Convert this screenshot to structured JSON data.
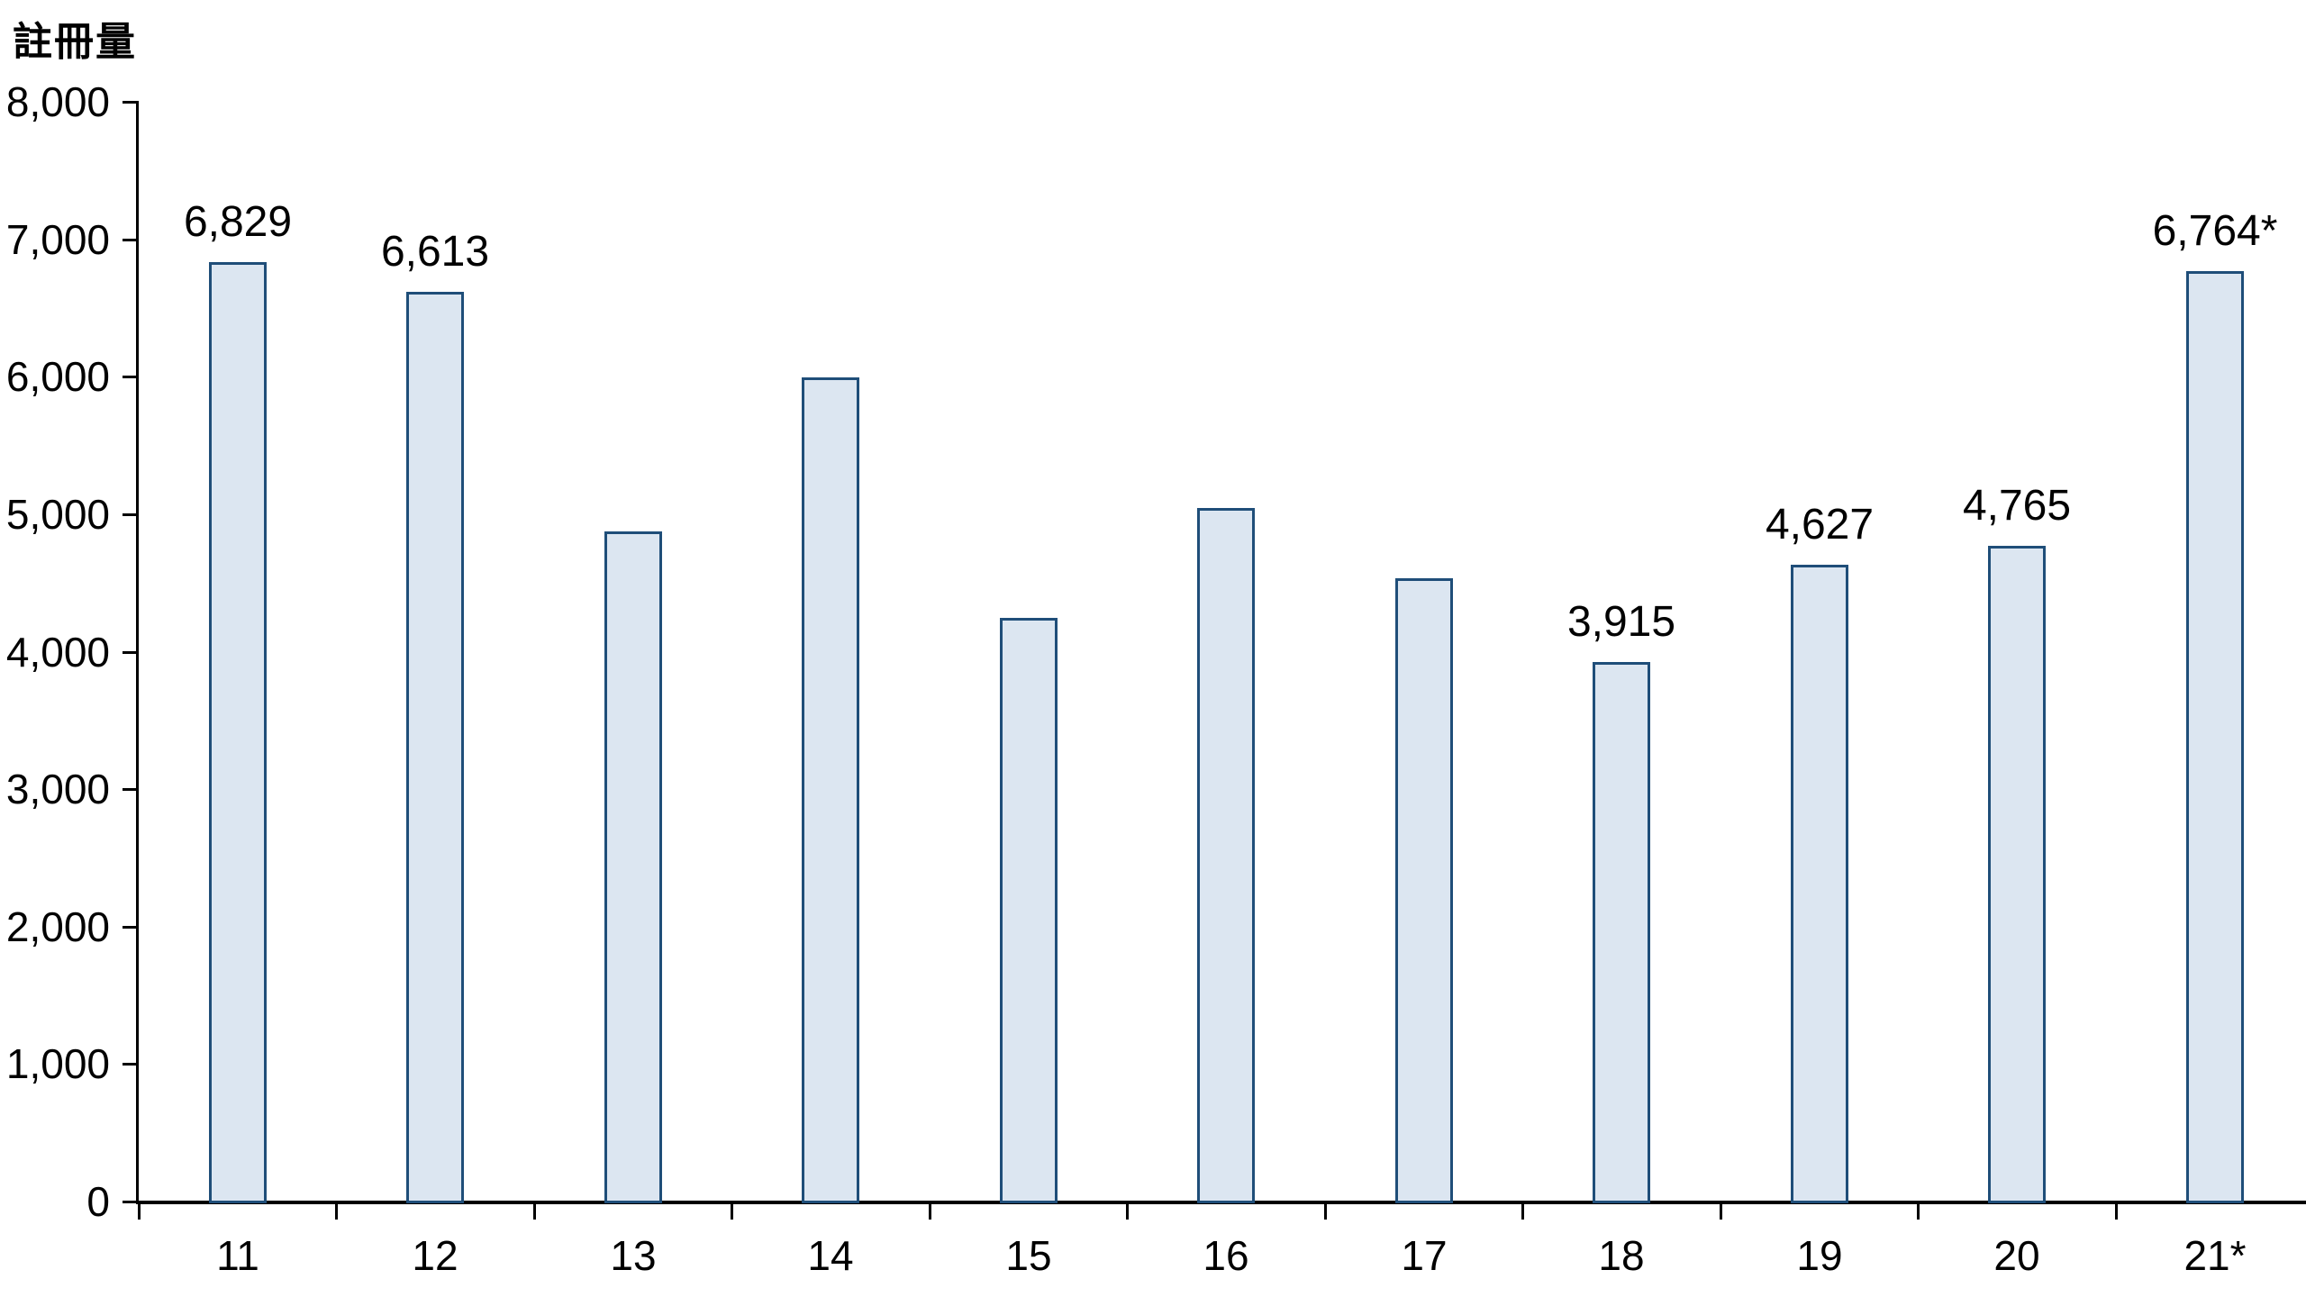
{
  "chart_data": {
    "type": "bar",
    "title": "註冊量",
    "ylabel": "註冊量",
    "xlabel": "",
    "categories": [
      "11",
      "12",
      "13",
      "14",
      "15",
      "16",
      "17",
      "18",
      "19",
      "20",
      "21*"
    ],
    "values": [
      6829,
      6613,
      4870,
      5990,
      4240,
      5040,
      4530,
      3915,
      4627,
      4765,
      6764
    ],
    "data_labels": [
      "6,829",
      "6,613",
      "",
      "",
      "",
      "",
      "",
      "3,915",
      "4,627",
      "4,765",
      "6,764*"
    ],
    "ylim": [
      0,
      8000
    ],
    "y_tick_step": 1000,
    "y_tick_labels": [
      "0",
      "1,000",
      "2,000",
      "3,000",
      "4,000",
      "5,000",
      "6,000",
      "7,000",
      "8,000"
    ],
    "grid": "off",
    "legend": "none",
    "bar_fill_color": "#dce6f1",
    "bar_border_color": "#1f4e79",
    "axis_color": "#000000",
    "text_color": "#000000"
  }
}
